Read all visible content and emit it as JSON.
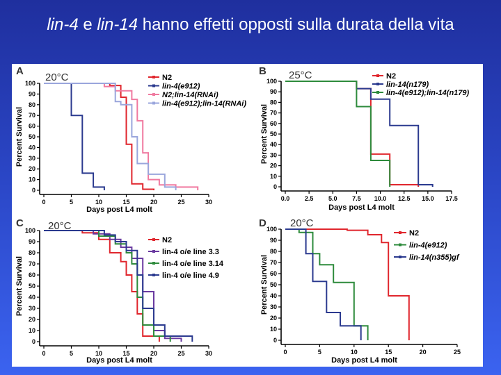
{
  "slide": {
    "title_parts": [
      {
        "text": "lin-4",
        "italic": true
      },
      {
        "text": " e ",
        "italic": false
      },
      {
        "text": "lin-14",
        "italic": true
      },
      {
        "text": " hanno effetti opposti sulla durata della vita",
        "italic": false
      }
    ]
  },
  "colors": {
    "red": "#e0262d",
    "blue": "#2b3a8f",
    "pink": "#f07aa0",
    "lavender": "#9aa6dc",
    "green": "#2e8b3c",
    "purple": "#6a3aa0"
  },
  "chart_data": [
    {
      "type": "line",
      "panel": "A",
      "title": "20°C",
      "xlabel": "Days post L4 molt",
      "ylabel": "Percent Survival",
      "xlim": [
        0,
        30
      ],
      "ylim": [
        0,
        100
      ],
      "xticks": [
        0,
        5,
        10,
        15,
        20,
        25,
        30
      ],
      "xtick_labels": [
        "0",
        "5",
        "10",
        "15",
        "20",
        "25",
        "30"
      ],
      "yticks": [
        0,
        10,
        20,
        30,
        40,
        50,
        60,
        70,
        80,
        90,
        100
      ],
      "ytick_labels": [
        "0",
        "10",
        "20",
        "30",
        "40",
        "50",
        "60",
        "70",
        "80",
        "90",
        "100"
      ],
      "series": [
        {
          "name": "N2",
          "color": "red",
          "italic": false,
          "steps": [
            [
              0,
              100
            ],
            [
              12,
              100
            ],
            [
              12,
              98
            ],
            [
              14,
              98
            ],
            [
              14,
              87
            ],
            [
              15,
              87
            ],
            [
              15,
              43
            ],
            [
              16,
              43
            ],
            [
              16,
              6
            ],
            [
              18,
              6
            ],
            [
              18,
              1
            ],
            [
              20,
              1
            ],
            [
              20,
              0
            ]
          ]
        },
        {
          "name": "lin-4(e912)",
          "color": "blue",
          "italic": true,
          "steps": [
            [
              0,
              100
            ],
            [
              5,
              100
            ],
            [
              5,
              70
            ],
            [
              7,
              70
            ],
            [
              7,
              16
            ],
            [
              9,
              16
            ],
            [
              9,
              3
            ],
            [
              11,
              3
            ],
            [
              11,
              0
            ]
          ]
        },
        {
          "name": "N2;lin-14(RNAi)",
          "color": "pink",
          "italic": true,
          "steps": [
            [
              0,
              100
            ],
            [
              11,
              100
            ],
            [
              11,
              97
            ],
            [
              13,
              97
            ],
            [
              13,
              93
            ],
            [
              16,
              93
            ],
            [
              16,
              85
            ],
            [
              17,
              85
            ],
            [
              17,
              65
            ],
            [
              18,
              65
            ],
            [
              18,
              35
            ],
            [
              19,
              35
            ],
            [
              19,
              10
            ],
            [
              21,
              10
            ],
            [
              21,
              5
            ],
            [
              24,
              5
            ],
            [
              24,
              3
            ],
            [
              28,
              3
            ],
            [
              28,
              0
            ]
          ]
        },
        {
          "name": "lin-4(e912);lin-14(RNAi)",
          "color": "lavender",
          "italic": true,
          "steps": [
            [
              0,
              100
            ],
            [
              13,
              100
            ],
            [
              13,
              83
            ],
            [
              14,
              83
            ],
            [
              14,
              80
            ],
            [
              16,
              80
            ],
            [
              16,
              50
            ],
            [
              17,
              50
            ],
            [
              17,
              25
            ],
            [
              19,
              25
            ],
            [
              19,
              15
            ],
            [
              22,
              15
            ],
            [
              22,
              3
            ],
            [
              24,
              3
            ],
            [
              24,
              0
            ]
          ]
        }
      ]
    },
    {
      "type": "line",
      "panel": "B",
      "title": "25°C",
      "xlabel": "Days post L4 molt",
      "ylabel": "Percent Survival",
      "xlim": [
        0,
        17.5
      ],
      "ylim": [
        0,
        100
      ],
      "xticks": [
        0,
        2.5,
        5,
        7.5,
        10,
        12.5,
        15,
        17.5
      ],
      "xtick_labels": [
        "0.0",
        "2.5",
        "5.0",
        "7.5",
        "10.0",
        "12.5",
        "15.0",
        "17.5"
      ],
      "yticks": [
        0,
        10,
        20,
        30,
        40,
        50,
        60,
        70,
        80,
        90,
        100
      ],
      "ytick_labels": [
        "0",
        "10",
        "20",
        "30",
        "40",
        "50",
        "60",
        "70",
        "80",
        "90",
        "100"
      ],
      "series": [
        {
          "name": "N2",
          "color": "red",
          "italic": false,
          "steps": [
            [
              0,
              100
            ],
            [
              7.5,
              100
            ],
            [
              7.5,
              93
            ],
            [
              9,
              93
            ],
            [
              9,
              31
            ],
            [
              11,
              31
            ],
            [
              11,
              2
            ],
            [
              14,
              2
            ],
            [
              14,
              0
            ]
          ]
        },
        {
          "name": "lin-14(n179)",
          "color": "blue",
          "italic": true,
          "steps": [
            [
              0,
              100
            ],
            [
              7.5,
              100
            ],
            [
              7.5,
              93
            ],
            [
              9,
              93
            ],
            [
              9,
              83
            ],
            [
              11,
              83
            ],
            [
              11,
              58
            ],
            [
              14,
              58
            ],
            [
              14,
              2
            ],
            [
              15.5,
              2
            ],
            [
              15.5,
              0
            ]
          ]
        },
        {
          "name": "lin-4(e912);lin-14(n179)",
          "color": "green",
          "italic": true,
          "steps": [
            [
              0,
              100
            ],
            [
              7.5,
              100
            ],
            [
              7.5,
              76
            ],
            [
              9,
              76
            ],
            [
              9,
              25
            ],
            [
              11,
              25
            ],
            [
              11,
              0
            ]
          ]
        }
      ]
    },
    {
      "type": "line",
      "panel": "C",
      "title": "20°C",
      "xlabel": "Days post L4 molt",
      "ylabel": "Percent Survival",
      "xlim": [
        0,
        30
      ],
      "ylim": [
        0,
        100
      ],
      "xticks": [
        0,
        5,
        10,
        15,
        20,
        25,
        30
      ],
      "xtick_labels": [
        "0",
        "5",
        "10",
        "15",
        "20",
        "25",
        "30"
      ],
      "yticks": [
        0,
        10,
        20,
        30,
        40,
        50,
        60,
        70,
        80,
        90,
        100
      ],
      "ytick_labels": [
        "0",
        "10",
        "20",
        "30",
        "40",
        "50",
        "60",
        "70",
        "80",
        "90",
        "100"
      ],
      "series": [
        {
          "name": "N2",
          "color": "red",
          "italic": false,
          "steps": [
            [
              0,
              100
            ],
            [
              7,
              100
            ],
            [
              7,
              98
            ],
            [
              10,
              98
            ],
            [
              10,
              92
            ],
            [
              12,
              92
            ],
            [
              12,
              80
            ],
            [
              14,
              80
            ],
            [
              14,
              72
            ],
            [
              15,
              72
            ],
            [
              15,
              60
            ],
            [
              16,
              60
            ],
            [
              16,
              45
            ],
            [
              17,
              45
            ],
            [
              17,
              25
            ],
            [
              18,
              25
            ],
            [
              18,
              5
            ],
            [
              21,
              5
            ],
            [
              21,
              0
            ]
          ]
        },
        {
          "name": "lin-4 o/e line 3.3",
          "color": "purple",
          "italic": false,
          "steps": [
            [
              0,
              100
            ],
            [
              9,
              100
            ],
            [
              9,
              97
            ],
            [
              12,
              97
            ],
            [
              12,
              92
            ],
            [
              14,
              92
            ],
            [
              14,
              85
            ],
            [
              16,
              85
            ],
            [
              16,
              75
            ],
            [
              18,
              75
            ],
            [
              18,
              45
            ],
            [
              20,
              45
            ],
            [
              20,
              10
            ],
            [
              22,
              10
            ],
            [
              22,
              3
            ],
            [
              25,
              3
            ],
            [
              25,
              0
            ]
          ]
        },
        {
          "name": "lin-4 o/e line 3.14",
          "color": "green",
          "italic": false,
          "steps": [
            [
              0,
              100
            ],
            [
              10,
              100
            ],
            [
              10,
              95
            ],
            [
              13,
              95
            ],
            [
              13,
              88
            ],
            [
              15,
              88
            ],
            [
              15,
              80
            ],
            [
              16,
              80
            ],
            [
              16,
              70
            ],
            [
              17,
              70
            ],
            [
              17,
              40
            ],
            [
              18,
              40
            ],
            [
              18,
              15
            ],
            [
              20,
              15
            ],
            [
              20,
              5
            ],
            [
              23,
              5
            ],
            [
              23,
              0
            ]
          ]
        },
        {
          "name": "lin-4 o/e line 4.9",
          "color": "blue",
          "italic": false,
          "steps": [
            [
              0,
              100
            ],
            [
              11,
              100
            ],
            [
              11,
              96
            ],
            [
              13,
              96
            ],
            [
              13,
              90
            ],
            [
              15,
              90
            ],
            [
              15,
              82
            ],
            [
              17,
              82
            ],
            [
              17,
              60
            ],
            [
              18,
              60
            ],
            [
              18,
              30
            ],
            [
              20,
              30
            ],
            [
              20,
              15
            ],
            [
              22,
              15
            ],
            [
              22,
              5
            ],
            [
              27,
              5
            ],
            [
              27,
              0
            ]
          ]
        }
      ]
    },
    {
      "type": "line",
      "panel": "D",
      "title": "20°C",
      "xlabel": "Days post L4 molt",
      "ylabel": "Percent Survival",
      "xlim": [
        0,
        25
      ],
      "ylim": [
        0,
        100
      ],
      "xticks": [
        0,
        5,
        10,
        15,
        20,
        25
      ],
      "xtick_labels": [
        "0",
        "5",
        "10",
        "15",
        "20",
        "25"
      ],
      "yticks": [
        0,
        10,
        20,
        30,
        40,
        50,
        60,
        70,
        80,
        90,
        100
      ],
      "ytick_labels": [
        "0",
        "10",
        "20",
        "30",
        "40",
        "50",
        "60",
        "70",
        "80",
        "90",
        "100"
      ],
      "series": [
        {
          "name": "N2",
          "color": "red",
          "italic": false,
          "steps": [
            [
              0,
              100
            ],
            [
              9,
              100
            ],
            [
              9,
              99
            ],
            [
              12,
              99
            ],
            [
              12,
              95
            ],
            [
              14,
              95
            ],
            [
              14,
              88
            ],
            [
              15,
              88
            ],
            [
              15,
              40
            ],
            [
              18,
              40
            ],
            [
              18,
              0
            ]
          ]
        },
        {
          "name": "lin-4(e912)",
          "color": "green",
          "italic": true,
          "steps": [
            [
              0,
              100
            ],
            [
              2,
              100
            ],
            [
              2,
              97
            ],
            [
              4,
              97
            ],
            [
              4,
              78
            ],
            [
              5,
              78
            ],
            [
              5,
              68
            ],
            [
              7,
              68
            ],
            [
              7,
              52
            ],
            [
              10,
              52
            ],
            [
              10,
              13
            ],
            [
              12,
              13
            ],
            [
              12,
              0
            ]
          ]
        },
        {
          "name": "lin-14(n355)gf",
          "color": "blue",
          "italic": true,
          "steps": [
            [
              0,
              100
            ],
            [
              3,
              100
            ],
            [
              3,
              78
            ],
            [
              4,
              78
            ],
            [
              4,
              53
            ],
            [
              6,
              53
            ],
            [
              6,
              25
            ],
            [
              8,
              25
            ],
            [
              8,
              13
            ],
            [
              11,
              13
            ],
            [
              11,
              0
            ]
          ]
        }
      ]
    }
  ]
}
